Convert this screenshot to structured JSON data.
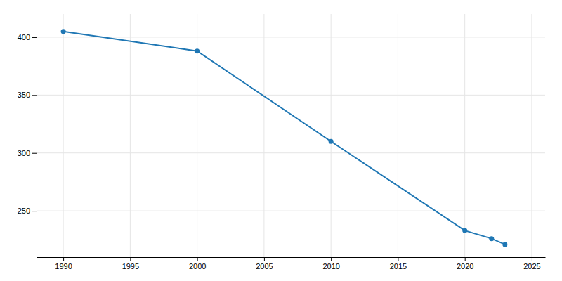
{
  "chart_data": {
    "type": "line",
    "x": [
      1990,
      2000,
      2010,
      2020,
      2022,
      2023
    ],
    "values": [
      405,
      388,
      310,
      233,
      226,
      221
    ],
    "marker": "circle",
    "xlim": [
      1988,
      2026
    ],
    "ylim": [
      210,
      420
    ],
    "xticks": [
      1990,
      1995,
      2000,
      2005,
      2010,
      2015,
      2020,
      2025
    ],
    "yticks": [
      250,
      300,
      350,
      400
    ],
    "grid": true
  }
}
